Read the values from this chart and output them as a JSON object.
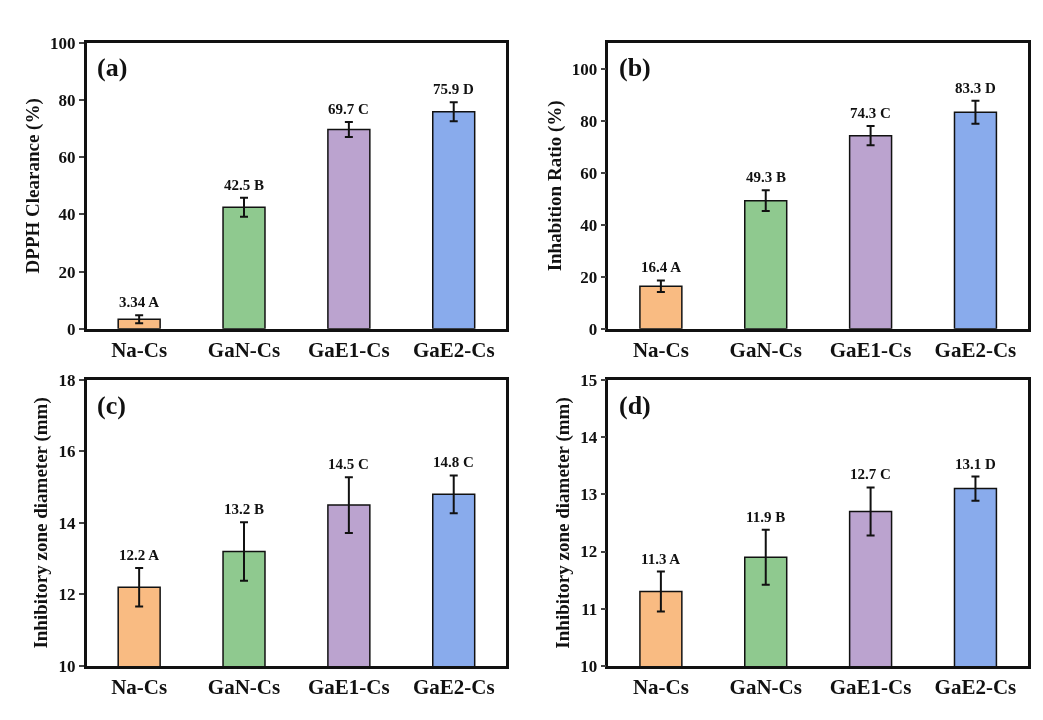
{
  "chart_data": [
    {
      "type": "bar",
      "title": "(a)",
      "ylabel": "DPPH Clearance (%)",
      "categories": [
        "Na-Cs",
        "GaN-Cs",
        "GaE1-Cs",
        "GaE2-Cs"
      ],
      "values": [
        3.34,
        42.5,
        69.7,
        75.9
      ],
      "errors": [
        1.4,
        3.3,
        2.6,
        3.3
      ],
      "value_labels": [
        "3.34 A",
        "42.5 B",
        "69.7 C",
        "75.9 D"
      ],
      "colors": [
        "#f9bb82",
        "#8fc98f",
        "#bba3cf",
        "#89abec"
      ],
      "ylim": [
        0,
        100
      ],
      "yticks": [
        0,
        20,
        40,
        60,
        80,
        100
      ]
    },
    {
      "type": "bar",
      "title": "(b)",
      "ylabel": "Inhabition Ratio (%)",
      "categories": [
        "Na-Cs",
        "GaN-Cs",
        "GaE1-Cs",
        "GaE2-Cs"
      ],
      "values": [
        16.4,
        49.3,
        74.3,
        83.3
      ],
      "errors": [
        2.2,
        4.0,
        3.7,
        4.4
      ],
      "value_labels": [
        "16.4 A",
        "49.3 B",
        "74.3 C",
        "83.3 D"
      ],
      "colors": [
        "#f9bb82",
        "#8fc98f",
        "#bba3cf",
        "#89abec"
      ],
      "ylim": [
        0,
        110
      ],
      "yticks": [
        0,
        20,
        40,
        60,
        80,
        100
      ]
    },
    {
      "type": "bar",
      "title": "(c)",
      "ylabel": "Inhibitory zone diameter (mm)",
      "categories": [
        "Na-Cs",
        "GaN-Cs",
        "GaE1-Cs",
        "GaE2-Cs"
      ],
      "values": [
        12.2,
        13.2,
        14.5,
        14.8
      ],
      "errors": [
        0.54,
        0.82,
        0.78,
        0.53
      ],
      "value_labels": [
        "12.2 A",
        "13.2 B",
        "14.5 C",
        "14.8 C"
      ],
      "colors": [
        "#f9bb82",
        "#8fc98f",
        "#bba3cf",
        "#89abec"
      ],
      "ylim": [
        10,
        18
      ],
      "yticks": [
        10,
        12,
        14,
        16,
        18
      ]
    },
    {
      "type": "bar",
      "title": "(d)",
      "ylabel": "Inhibitory zone diameter (mm)",
      "categories": [
        "Na-Cs",
        "GaN-Cs",
        "GaE1-Cs",
        "GaE2-Cs"
      ],
      "values": [
        11.3,
        11.9,
        12.7,
        13.1
      ],
      "errors": [
        0.35,
        0.48,
        0.42,
        0.21
      ],
      "value_labels": [
        "11.3 A",
        "11.9 B",
        "12.7 C",
        "13.1 D"
      ],
      "colors": [
        "#f9bb82",
        "#8fc98f",
        "#bba3cf",
        "#89abec"
      ],
      "ylim": [
        10,
        15
      ],
      "yticks": [
        10,
        11,
        12,
        13,
        14,
        15
      ]
    }
  ]
}
